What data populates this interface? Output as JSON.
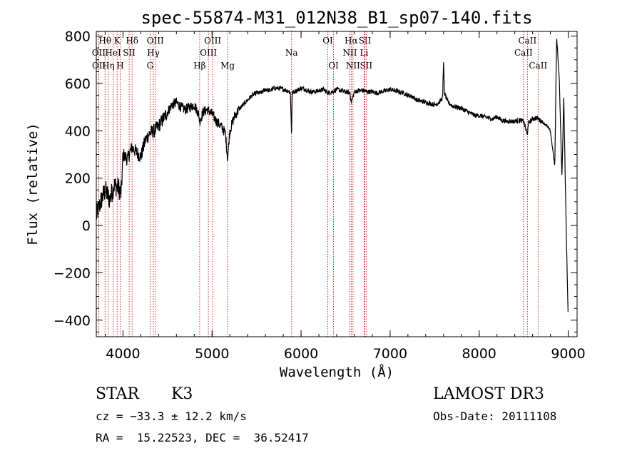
{
  "chart_data": {
    "type": "line",
    "title": "spec-55874-M31_012N38_B1_sp07-140.fits",
    "xlabel": "Wavelength (Å)",
    "ylabel": "Flux (relative)",
    "xlim": [
      3700,
      9100
    ],
    "ylim": [
      -470,
      820
    ],
    "xticks": [
      4000,
      5000,
      6000,
      7000,
      8000,
      9000
    ],
    "xtick_labels": [
      "4000",
      "5000",
      "6000",
      "7000",
      "8000",
      "9000"
    ],
    "yticks": [
      -400,
      -200,
      0,
      200,
      400,
      600,
      800
    ],
    "ytick_labels": [
      "−400",
      "−200",
      "0",
      "200",
      "400",
      "600",
      "800"
    ],
    "series": [
      {
        "name": "spectrum",
        "x": [
          3700,
          3750,
          3800,
          3850,
          3900,
          3950,
          3980,
          4000,
          4050,
          4100,
          4150,
          4200,
          4250,
          4300,
          4350,
          4400,
          4450,
          4500,
          4550,
          4600,
          4650,
          4700,
          4750,
          4800,
          4850,
          4861,
          4900,
          4950,
          5000,
          5050,
          5100,
          5150,
          5175,
          5190,
          5200,
          5250,
          5300,
          5350,
          5400,
          5450,
          5500,
          5550,
          5600,
          5650,
          5700,
          5750,
          5800,
          5850,
          5880,
          5893,
          5900,
          5950,
          6000,
          6050,
          6100,
          6150,
          6200,
          6250,
          6300,
          6350,
          6400,
          6450,
          6500,
          6550,
          6563,
          6600,
          6650,
          6700,
          6750,
          6800,
          6850,
          6900,
          6950,
          7000,
          7050,
          7100,
          7150,
          7200,
          7250,
          7300,
          7350,
          7400,
          7450,
          7500,
          7550,
          7590,
          7600,
          7610,
          7650,
          7700,
          7750,
          7800,
          7850,
          7900,
          7950,
          8000,
          8050,
          8100,
          8150,
          8200,
          8250,
          8300,
          8350,
          8400,
          8450,
          8500,
          8542,
          8550,
          8600,
          8650,
          8700,
          8750,
          8800,
          8850,
          8870,
          8900,
          8930,
          8950,
          8980,
          9000
        ],
        "y": [
          40,
          100,
          150,
          110,
          170,
          160,
          130,
          300,
          280,
          330,
          310,
          290,
          360,
          390,
          400,
          420,
          450,
          480,
          510,
          520,
          500,
          490,
          500,
          510,
          470,
          440,
          480,
          490,
          470,
          440,
          420,
          390,
          280,
          360,
          400,
          460,
          490,
          510,
          530,
          550,
          560,
          560,
          575,
          570,
          580,
          580,
          575,
          570,
          560,
          390,
          560,
          570,
          580,
          575,
          565,
          565,
          570,
          575,
          560,
          565,
          575,
          570,
          565,
          560,
          520,
          565,
          570,
          570,
          565,
          565,
          560,
          565,
          570,
          575,
          570,
          565,
          560,
          550,
          545,
          530,
          525,
          520,
          515,
          510,
          520,
          540,
          690,
          560,
          520,
          505,
          500,
          495,
          485,
          475,
          465,
          465,
          460,
          455,
          450,
          460,
          445,
          440,
          440,
          440,
          445,
          440,
          380,
          430,
          450,
          455,
          440,
          425,
          400,
          250,
          800,
          620,
          200,
          540,
          -50,
          -400
        ]
      }
    ],
    "line_markers": [
      {
        "name": "Hθ",
        "wave": 3798,
        "row": 1
      },
      {
        "name": "OII",
        "wave": 3727,
        "row": 2
      },
      {
        "name": "OII",
        "wave": 3729,
        "row": 3
      },
      {
        "name": "HeI",
        "wave": 3889,
        "row": 2
      },
      {
        "name": "Hη",
        "wave": 3835,
        "row": 3
      },
      {
        "name": "K",
        "wave": 3934,
        "row": 1
      },
      {
        "name": "H",
        "wave": 3968,
        "row": 3
      },
      {
        "name": "SII",
        "wave": 4069,
        "row": 2
      },
      {
        "name": "Hδ",
        "wave": 4102,
        "row": 1
      },
      {
        "name": "OIII",
        "wave": 4363,
        "row": 1
      },
      {
        "name": "Hγ",
        "wave": 4341,
        "row": 2
      },
      {
        "name": "G",
        "wave": 4304,
        "row": 3
      },
      {
        "name": "Hβ",
        "wave": 4861,
        "row": 3
      },
      {
        "name": "OIII",
        "wave": 4959,
        "row": 2
      },
      {
        "name": "OIII",
        "wave": 5007,
        "row": 1
      },
      {
        "name": "Mg",
        "wave": 5175,
        "row": 3
      },
      {
        "name": "Na",
        "wave": 5893,
        "row": 2
      },
      {
        "name": "OI",
        "wave": 6300,
        "row": 1
      },
      {
        "name": "OI",
        "wave": 6364,
        "row": 3
      },
      {
        "name": "NII",
        "wave": 6548,
        "row": 2
      },
      {
        "name": "Hα",
        "wave": 6563,
        "row": 1
      },
      {
        "name": "NII",
        "wave": 6583,
        "row": 3
      },
      {
        "name": "Li",
        "wave": 6708,
        "row": 2
      },
      {
        "name": "SII",
        "wave": 6717,
        "row": 1
      },
      {
        "name": "SII",
        "wave": 6731,
        "row": 3
      },
      {
        "name": "CaII",
        "wave": 8498,
        "row": 2
      },
      {
        "name": "CaII",
        "wave": 8542,
        "row": 1
      },
      {
        "name": "CaII",
        "wave": 8662,
        "row": 3
      }
    ],
    "marker_color": "#cc2222",
    "line_color": "#000000"
  },
  "footer": {
    "class_label": "STAR",
    "subclass": "K3",
    "survey": "LAMOST DR3",
    "cz": "cz = −33.3 ± 12.2 km/s",
    "obs_date": "Obs-Date: 20111108",
    "coords": "RA =  15.22523, DEC =  36.52417"
  }
}
